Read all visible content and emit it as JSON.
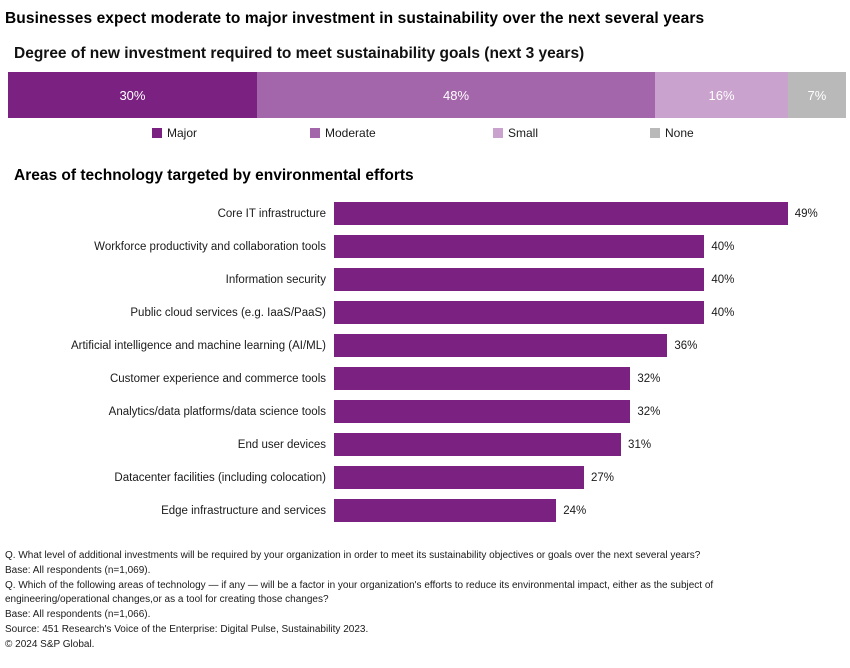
{
  "page": {
    "title": "Businesses expect moderate to major investment in sustainability over the next several years"
  },
  "chart_data": [
    {
      "type": "bar",
      "variant": "stacked-horizontal",
      "title": "Degree of new investment required to meet sustainability goals (next 3 years)",
      "unit": "%",
      "legend_position": "bottom",
      "segments": [
        {
          "label": "Major",
          "value": 30,
          "color": "#7A2182"
        },
        {
          "label": "Moderate",
          "value": 48,
          "color": "#A466AA"
        },
        {
          "label": "Small",
          "value": 16,
          "color": "#C9A2CE"
        },
        {
          "label": "None",
          "value": 7,
          "color": "#B9B9B9"
        }
      ]
    },
    {
      "type": "bar",
      "variant": "horizontal",
      "title": "Areas of technology targeted by environmental efforts",
      "unit": "%",
      "bar_color": "#7A2182",
      "xlim": [
        0,
        52
      ],
      "data_labels": true,
      "categories": [
        "Core IT infrastructure",
        "Workforce productivity and collaboration tools",
        "Information security",
        "Public cloud services (e.g. IaaS/PaaS)",
        "Artificial intelligence and machine learning (AI/ML)",
        "Customer experience and commerce tools",
        "Analytics/data platforms/data science tools",
        "End user devices",
        "Datacenter facilities (including colocation)",
        "Edge infrastructure and services"
      ],
      "values": [
        49,
        40,
        40,
        40,
        36,
        32,
        32,
        31,
        27,
        24
      ]
    }
  ],
  "footer": {
    "lines": [
      "Q. What level of additional investments will be required by your organization in order to meet its sustainability objectives or goals over the next several years?",
      "Base: All respondents (n=1,069).",
      "Q. Which of the following areas of technology — if any — will be a factor in your organization's efforts to reduce its environmental impact, either as the subject of",
      "engineering/operational changes,or as a tool for creating those changes?",
      "Base: All respondents (n=1,066).",
      "Source: 451 Research's Voice of the Enterprise: Digital Pulse, Sustainability 2023.",
      "© 2024 S&P Global."
    ]
  }
}
